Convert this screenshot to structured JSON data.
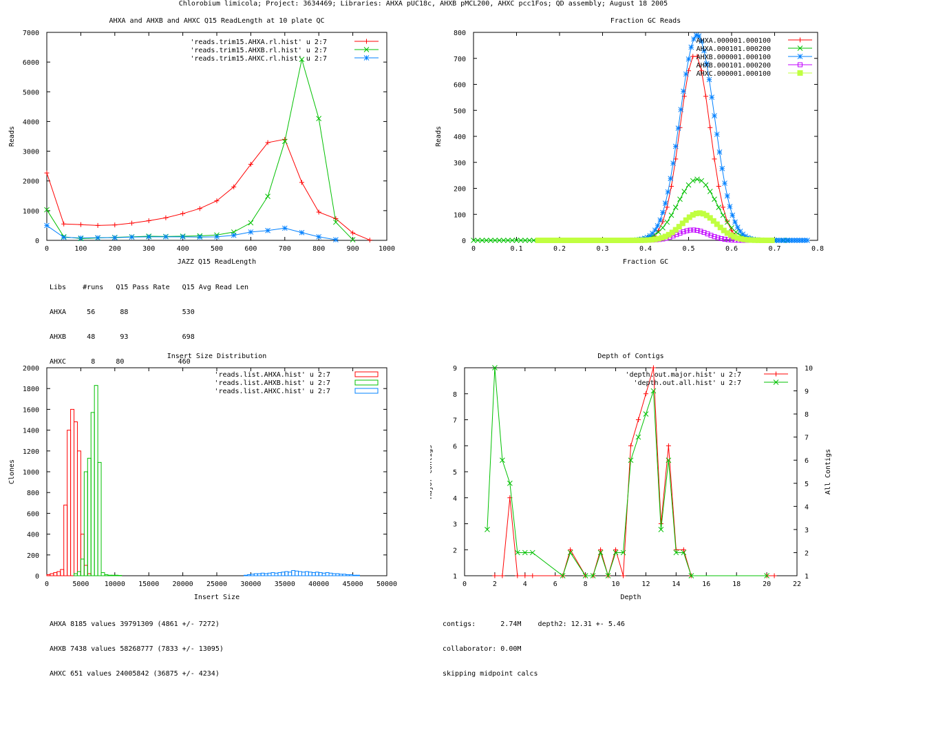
{
  "page_title": "Chlorobium limicola; Project: 3634469; Libraries: AHXA pUC18c, AHXB pMCL200, AHXC pcc1Fos; QD assembly; August 18 2005",
  "colors": {
    "red": "#ff0000",
    "green": "#00c000",
    "blue": "#0080ff",
    "magenta": "#c000ff",
    "lime": "#c0ff40",
    "axis": "#000000"
  },
  "chart_data": [
    {
      "id": "readlength",
      "type": "line",
      "title": "AHXA and AHXB and AHXC Q15 ReadLength at 10 plate QC",
      "xlabel": "JAZZ Q15 ReadLength",
      "ylabel": "Reads",
      "xlim": [
        0,
        1000
      ],
      "ylim": [
        0,
        7000
      ],
      "xticks": [
        0,
        100,
        200,
        300,
        400,
        500,
        600,
        700,
        800,
        900,
        1000
      ],
      "yticks": [
        0,
        1000,
        2000,
        3000,
        4000,
        5000,
        6000,
        7000
      ],
      "series": [
        {
          "name": "'reads.trim15.AHXA.rl.hist' u 2:7",
          "color": "#ff0000",
          "marker": "plus",
          "x": [
            0,
            50,
            100,
            150,
            200,
            250,
            300,
            350,
            400,
            450,
            500,
            550,
            600,
            650,
            700,
            750,
            800,
            850,
            900,
            950
          ],
          "y": [
            2270,
            550,
            530,
            500,
            520,
            580,
            660,
            760,
            900,
            1070,
            1330,
            1800,
            2560,
            3290,
            3400,
            1950,
            950,
            730,
            250,
            10
          ]
        },
        {
          "name": "'reads.trim15.AHXB.rl.hist' u 2:7",
          "color": "#00c000",
          "marker": "x",
          "x": [
            0,
            50,
            100,
            150,
            200,
            250,
            300,
            350,
            400,
            450,
            500,
            550,
            600,
            650,
            700,
            750,
            800,
            850,
            900
          ],
          "y": [
            1030,
            120,
            60,
            80,
            100,
            120,
            140,
            130,
            140,
            150,
            180,
            280,
            590,
            1480,
            3330,
            6090,
            4100,
            610,
            20
          ]
        },
        {
          "name": "'reads.trim15.AHXC.rl.hist' u 2:7",
          "color": "#0080ff",
          "marker": "star",
          "x": [
            0,
            50,
            100,
            150,
            200,
            250,
            300,
            350,
            400,
            450,
            500,
            550,
            600,
            650,
            700,
            750,
            800,
            850
          ],
          "y": [
            500,
            100,
            80,
            90,
            90,
            110,
            120,
            120,
            120,
            110,
            120,
            170,
            280,
            330,
            410,
            260,
            120,
            20
          ]
        }
      ]
    },
    {
      "id": "gc",
      "type": "scatter",
      "title": "Fraction GC Reads",
      "xlabel": "Fraction GC",
      "ylabel": "Reads",
      "xlim": [
        0,
        0.8
      ],
      "ylim": [
        0,
        800
      ],
      "xticks": [
        0,
        0.1,
        0.2,
        0.3,
        0.4,
        0.5,
        0.6,
        0.7,
        0.8
      ],
      "yticks": [
        0,
        100,
        200,
        300,
        400,
        500,
        600,
        700,
        800
      ],
      "series": [
        {
          "name": "AHXA.000001.000100",
          "color": "#ff0000",
          "marker": "plus",
          "mu": 0.515,
          "sigma": 0.035,
          "peak": 715,
          "lo": 0.2,
          "hi": 0.67,
          "step": 0.01
        },
        {
          "name": "AHXA.000101.000200",
          "color": "#00c000",
          "marker": "x",
          "mu": 0.52,
          "sigma": 0.045,
          "peak": 235,
          "lo": 0.0,
          "hi": 0.73,
          "step": 0.01
        },
        {
          "name": "AHXB.000001.000100",
          "color": "#0080ff",
          "marker": "star",
          "mu": 0.52,
          "sigma": 0.04,
          "peak": 790,
          "lo": 0.2,
          "hi": 0.78,
          "step": 0.006
        },
        {
          "name": "AHXB.000101.000200",
          "color": "#c000ff",
          "marker": "square",
          "mu": 0.51,
          "sigma": 0.035,
          "peak": 40,
          "lo": 0.4,
          "hi": 0.65,
          "step": 0.008
        },
        {
          "name": "AHXC.000001.000100",
          "color": "#c0ff40",
          "marker": "filled-square",
          "mu": 0.525,
          "sigma": 0.04,
          "peak": 105,
          "lo": 0.15,
          "hi": 0.7,
          "step": 0.008
        }
      ]
    },
    {
      "id": "insert",
      "type": "bar",
      "title": "Insert Size Distribution",
      "xlabel": "Insert Size",
      "ylabel": "Clones",
      "xlim": [
        0,
        50000
      ],
      "ylim": [
        0,
        2000
      ],
      "xticks": [
        0,
        5000,
        10000,
        15000,
        20000,
        25000,
        30000,
        35000,
        40000,
        45000,
        50000
      ],
      "yticks": [
        0,
        200,
        400,
        600,
        800,
        1000,
        1200,
        1400,
        1600,
        1800,
        2000
      ],
      "binwidth": 500,
      "series": [
        {
          "name": "'reads.list.AHXA.hist' u 2:7",
          "color": "#ff0000",
          "x": [
            0,
            500,
            1000,
            1500,
            2000,
            2500,
            3000,
            3500,
            4000,
            4500,
            5000,
            5500,
            6000
          ],
          "y": [
            10,
            20,
            30,
            40,
            60,
            680,
            1400,
            1600,
            1480,
            1200,
            400,
            100,
            20
          ]
        },
        {
          "name": "'reads.list.AHXB.hist' u 2:7",
          "color": "#00c000",
          "x": [
            4000,
            4500,
            5000,
            5500,
            6000,
            6500,
            7000,
            7500,
            8000,
            8500,
            9000,
            9500,
            10000,
            10500
          ],
          "y": [
            20,
            40,
            160,
            1000,
            1130,
            1570,
            1830,
            1090,
            30,
            10,
            5,
            5,
            5,
            3
          ]
        },
        {
          "name": "'reads.list.AHXC.hist' u 2:7",
          "color": "#0080ff",
          "x": [
            29000,
            29500,
            30000,
            30500,
            31000,
            31500,
            32000,
            32500,
            33000,
            33500,
            34000,
            34500,
            35000,
            35500,
            36000,
            36500,
            37000,
            37500,
            38000,
            38500,
            39000,
            39500,
            40000,
            40500,
            41000,
            41500,
            42000,
            42500,
            43000,
            43500,
            44000,
            44500,
            45000,
            45500
          ],
          "y": [
            5,
            10,
            15,
            20,
            20,
            25,
            20,
            25,
            30,
            25,
            30,
            35,
            40,
            35,
            50,
            45,
            40,
            35,
            40,
            35,
            30,
            35,
            30,
            25,
            30,
            25,
            20,
            20,
            15,
            15,
            10,
            10,
            5,
            5
          ]
        }
      ]
    },
    {
      "id": "depth",
      "type": "line",
      "title": "Depth of Contigs",
      "xlabel": "Depth",
      "ylabel": "Major Contigs",
      "y2label": "All Contigs",
      "xlim": [
        0,
        22
      ],
      "ylim": [
        1,
        9
      ],
      "y2lim": [
        1,
        10
      ],
      "xticks": [
        0,
        2,
        4,
        6,
        8,
        10,
        12,
        14,
        16,
        18,
        20,
        22
      ],
      "yticks": [
        1,
        2,
        3,
        4,
        5,
        6,
        7,
        8,
        9
      ],
      "y2ticks": [
        1,
        2,
        3,
        4,
        5,
        6,
        7,
        8,
        9,
        10
      ],
      "series": [
        {
          "name": "'depth.out.major.hist' u 2:7",
          "color": "#ff0000",
          "marker": "plus",
          "axis": "y",
          "x": [
            2,
            2.5,
            3,
            3.5,
            4,
            4.5,
            6.5,
            7,
            8,
            8.5,
            9,
            9.5,
            10,
            10.5,
            11,
            11.5,
            12,
            12.5,
            13,
            13.5,
            14,
            14.5,
            15,
            20,
            20.5
          ],
          "y": [
            1,
            1,
            4,
            1,
            1,
            1,
            1,
            2,
            1,
            1,
            2,
            1,
            2,
            1,
            6,
            7,
            8,
            9,
            3,
            6,
            2,
            2,
            1,
            1,
            1
          ]
        },
        {
          "name": "'depth.out.all.hist' u 2:7",
          "color": "#00c000",
          "marker": "x",
          "axis": "y2",
          "x": [
            1.5,
            2,
            2.5,
            3,
            3.5,
            4,
            4.5,
            6.5,
            7,
            8,
            8.5,
            9,
            9.5,
            10,
            10.5,
            11,
            11.5,
            12,
            12.5,
            13,
            13.5,
            14,
            14.5,
            15,
            20
          ],
          "y": [
            3,
            10,
            6,
            5,
            2,
            2,
            2,
            1,
            2,
            1,
            1,
            2,
            1,
            2,
            2,
            6,
            7,
            8,
            9,
            3,
            6,
            2,
            2,
            1,
            1
          ]
        }
      ]
    }
  ],
  "readlength_stats": {
    "header": "Libs    #runs   Q15 Pass Rate   Q15 Avg Read Len",
    "rows": [
      "AHXA     56      88             530",
      "AHXB     48      93             698",
      "AHXC      8     80             460"
    ]
  },
  "insert_stats": {
    "rows": [
      "AHXA 8185 values 39791309 (4861 +/- 7272)",
      "AHXB 7438 values 58268777 (7833 +/- 13095)",
      "AHXC 651 values 24005842 (36875 +/- 4234)"
    ]
  },
  "depth_stats": {
    "rows": [
      "contigs:      2.74M    depth2: 12.31 +- 5.46",
      "collaborator: 0.00M",
      "skipping midpoint calcs"
    ]
  }
}
